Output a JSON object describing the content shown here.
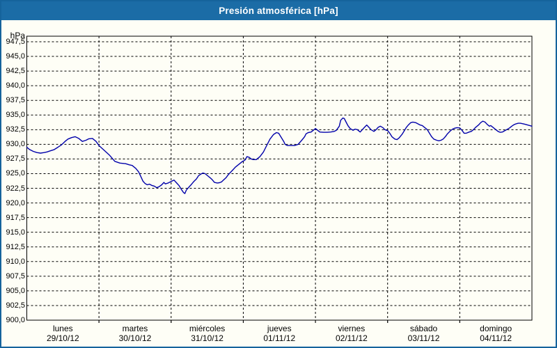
{
  "window": {
    "title": "Presión atmosférica [hPa]"
  },
  "colors": {
    "titlebar": "#1B6CA6",
    "frame_border": "#15639C",
    "background": "#FEFEF6",
    "plot_background": "#FEFEF6",
    "grid": "#000000",
    "line": "#0000AA",
    "text": "#000000",
    "title_text": "#FFFFFF"
  },
  "y_axis": {
    "unit": "hPa",
    "tick_labels": [
      "947,5",
      "945,0",
      "942,5",
      "940,0",
      "937,5",
      "935,0",
      "932,5",
      "930,0",
      "927,5",
      "925,0",
      "922,5",
      "920,0",
      "917,5",
      "915,0",
      "912,5",
      "910,0",
      "907,5",
      "905,0",
      "902,5",
      "900,0"
    ]
  },
  "x_axis": {
    "days": [
      {
        "name": "lunes",
        "date": "29/10/12"
      },
      {
        "name": "martes",
        "date": "30/10/12"
      },
      {
        "name": "miércoles",
        "date": "31/10/12"
      },
      {
        "name": "jueves",
        "date": "01/11/12"
      },
      {
        "name": "viernes",
        "date": "02/11/12"
      },
      {
        "name": "sábado",
        "date": "03/11/12"
      },
      {
        "name": "domingo",
        "date": "04/11/12"
      }
    ]
  },
  "chart_data": {
    "type": "line",
    "title": "Presión atmosférica [hPa]",
    "ylabel": "hPa",
    "ylim": [
      900.0,
      948.45
    ],
    "ytick_step": 2.5,
    "grid": true,
    "legend": "none",
    "x_unit": "days since lunes 29/10/12 00:00 (0..7)",
    "series": [
      {
        "name": "Presión atmosférica",
        "points": [
          [
            0.0,
            929.5
          ],
          [
            0.04,
            929.1
          ],
          [
            0.09,
            928.8
          ],
          [
            0.14,
            928.6
          ],
          [
            0.19,
            928.5
          ],
          [
            0.24,
            928.6
          ],
          [
            0.28,
            928.7
          ],
          [
            0.33,
            928.9
          ],
          [
            0.38,
            929.1
          ],
          [
            0.43,
            929.5
          ],
          [
            0.48,
            929.9
          ],
          [
            0.53,
            930.5
          ],
          [
            0.57,
            930.9
          ],
          [
            0.62,
            931.15
          ],
          [
            0.67,
            931.3
          ],
          [
            0.72,
            931.0
          ],
          [
            0.77,
            930.5
          ],
          [
            0.82,
            930.7
          ],
          [
            0.86,
            930.95
          ],
          [
            0.91,
            931.0
          ],
          [
            0.96,
            930.5
          ],
          [
            1.0,
            929.8
          ],
          [
            1.08,
            928.9
          ],
          [
            1.15,
            928.1
          ],
          [
            1.22,
            927.1
          ],
          [
            1.29,
            926.8
          ],
          [
            1.37,
            926.7
          ],
          [
            1.42,
            926.5
          ],
          [
            1.46,
            926.4
          ],
          [
            1.51,
            925.9
          ],
          [
            1.55,
            925.3
          ],
          [
            1.58,
            924.5
          ],
          [
            1.61,
            923.7
          ],
          [
            1.64,
            923.3
          ],
          [
            1.67,
            923.1
          ],
          [
            1.7,
            923.2
          ],
          [
            1.73,
            923.0
          ],
          [
            1.77,
            922.85
          ],
          [
            1.8,
            922.6
          ],
          [
            1.83,
            922.75
          ],
          [
            1.87,
            923.1
          ],
          [
            1.9,
            923.5
          ],
          [
            1.92,
            923.25
          ],
          [
            1.96,
            923.4
          ],
          [
            2.0,
            923.65
          ],
          [
            2.04,
            923.9
          ],
          [
            2.07,
            923.5
          ],
          [
            2.11,
            922.95
          ],
          [
            2.14,
            922.35
          ],
          [
            2.17,
            921.8
          ],
          [
            2.19,
            921.6
          ],
          [
            2.21,
            922.2
          ],
          [
            2.25,
            922.75
          ],
          [
            2.28,
            923.15
          ],
          [
            2.31,
            923.6
          ],
          [
            2.35,
            924.1
          ],
          [
            2.38,
            924.65
          ],
          [
            2.41,
            924.9
          ],
          [
            2.44,
            925.1
          ],
          [
            2.47,
            925.0
          ],
          [
            2.5,
            924.7
          ],
          [
            2.54,
            924.3
          ],
          [
            2.57,
            923.95
          ],
          [
            2.6,
            923.5
          ],
          [
            2.64,
            923.4
          ],
          [
            2.67,
            923.45
          ],
          [
            2.7,
            923.6
          ],
          [
            2.73,
            923.95
          ],
          [
            2.76,
            924.3
          ],
          [
            2.79,
            924.8
          ],
          [
            2.83,
            925.3
          ],
          [
            2.86,
            925.7
          ],
          [
            2.89,
            926.1
          ],
          [
            2.93,
            926.5
          ],
          [
            2.96,
            926.8
          ],
          [
            2.99,
            927.1
          ],
          [
            3.01,
            927.2
          ],
          [
            3.03,
            927.4
          ],
          [
            3.05,
            927.9
          ],
          [
            3.08,
            927.8
          ],
          [
            3.11,
            927.5
          ],
          [
            3.14,
            927.4
          ],
          [
            3.18,
            927.4
          ],
          [
            3.23,
            927.9
          ],
          [
            3.28,
            928.7
          ],
          [
            3.32,
            929.7
          ],
          [
            3.37,
            930.9
          ],
          [
            3.42,
            931.7
          ],
          [
            3.46,
            932.0
          ],
          [
            3.49,
            931.9
          ],
          [
            3.52,
            931.3
          ],
          [
            3.56,
            930.5
          ],
          [
            3.58,
            930.0
          ],
          [
            3.61,
            929.8
          ],
          [
            3.66,
            929.8
          ],
          [
            3.71,
            929.8
          ],
          [
            3.76,
            930.0
          ],
          [
            3.81,
            930.7
          ],
          [
            3.85,
            931.3
          ],
          [
            3.87,
            931.8
          ],
          [
            3.9,
            932.0
          ],
          [
            3.94,
            932.1
          ],
          [
            3.97,
            932.4
          ],
          [
            4.0,
            932.7
          ],
          [
            4.03,
            932.4
          ],
          [
            4.06,
            932.1
          ],
          [
            4.11,
            932.05
          ],
          [
            4.16,
            932.05
          ],
          [
            4.21,
            932.1
          ],
          [
            4.26,
            932.2
          ],
          [
            4.29,
            932.4
          ],
          [
            4.33,
            933.1
          ],
          [
            4.35,
            934.1
          ],
          [
            4.38,
            934.5
          ],
          [
            4.4,
            934.4
          ],
          [
            4.42,
            933.9
          ],
          [
            4.45,
            933.2
          ],
          [
            4.48,
            932.7
          ],
          [
            4.52,
            932.4
          ],
          [
            4.55,
            932.6
          ],
          [
            4.58,
            932.5
          ],
          [
            4.62,
            932.1
          ],
          [
            4.65,
            932.5
          ],
          [
            4.68,
            932.9
          ],
          [
            4.71,
            933.3
          ],
          [
            4.74,
            932.9
          ],
          [
            4.77,
            932.5
          ],
          [
            4.81,
            932.2
          ],
          [
            4.84,
            932.5
          ],
          [
            4.87,
            932.9
          ],
          [
            4.9,
            933.1
          ],
          [
            4.94,
            932.8
          ],
          [
            4.96,
            932.5
          ],
          [
            5.0,
            932.35
          ],
          [
            5.03,
            931.9
          ],
          [
            5.06,
            931.3
          ],
          [
            5.1,
            930.9
          ],
          [
            5.13,
            930.8
          ],
          [
            5.16,
            931.1
          ],
          [
            5.2,
            931.7
          ],
          [
            5.23,
            932.3
          ],
          [
            5.26,
            932.9
          ],
          [
            5.29,
            933.35
          ],
          [
            5.32,
            933.7
          ],
          [
            5.35,
            933.8
          ],
          [
            5.39,
            933.7
          ],
          [
            5.42,
            933.5
          ],
          [
            5.45,
            933.3
          ],
          [
            5.48,
            933.2
          ],
          [
            5.51,
            932.9
          ],
          [
            5.55,
            932.5
          ],
          [
            5.58,
            931.9
          ],
          [
            5.61,
            931.3
          ],
          [
            5.64,
            930.9
          ],
          [
            5.68,
            930.7
          ],
          [
            5.71,
            930.6
          ],
          [
            5.74,
            930.7
          ],
          [
            5.77,
            930.9
          ],
          [
            5.8,
            931.3
          ],
          [
            5.83,
            931.8
          ],
          [
            5.87,
            932.3
          ],
          [
            5.9,
            932.6
          ],
          [
            5.93,
            932.75
          ],
          [
            5.96,
            932.85
          ],
          [
            6.0,
            932.8
          ],
          [
            6.03,
            932.4
          ],
          [
            6.06,
            931.9
          ],
          [
            6.09,
            931.9
          ],
          [
            6.13,
            932.1
          ],
          [
            6.16,
            932.2
          ],
          [
            6.19,
            932.5
          ],
          [
            6.22,
            932.9
          ],
          [
            6.26,
            933.3
          ],
          [
            6.29,
            933.7
          ],
          [
            6.32,
            933.95
          ],
          [
            6.35,
            933.8
          ],
          [
            6.38,
            933.4
          ],
          [
            6.41,
            933.1
          ],
          [
            6.43,
            933.2
          ],
          [
            6.46,
            932.9
          ],
          [
            6.5,
            932.5
          ],
          [
            6.53,
            932.2
          ],
          [
            6.56,
            932.05
          ],
          [
            6.59,
            932.1
          ],
          [
            6.62,
            932.3
          ],
          [
            6.65,
            932.5
          ],
          [
            6.69,
            932.8
          ],
          [
            6.72,
            933.1
          ],
          [
            6.75,
            933.35
          ],
          [
            6.78,
            933.5
          ],
          [
            6.81,
            933.6
          ],
          [
            6.84,
            933.6
          ],
          [
            6.88,
            933.5
          ],
          [
            6.91,
            933.4
          ],
          [
            6.94,
            933.3
          ],
          [
            6.97,
            933.2
          ],
          [
            7.0,
            933.1
          ]
        ]
      }
    ]
  }
}
